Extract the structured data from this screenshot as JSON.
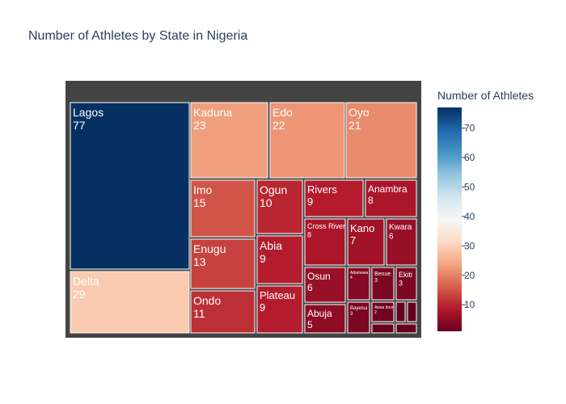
{
  "chart_data": {
    "type": "treemap",
    "title": "Number of Athletes by State in Nigeria",
    "colorscale": "RdBu",
    "colorbar": {
      "title": "Number of Athletes",
      "range": [
        1,
        77
      ],
      "ticks": [
        10,
        20,
        30,
        40,
        50,
        60,
        70
      ]
    },
    "nodes": [
      {
        "label": "Lagos",
        "value": 77
      },
      {
        "label": "Delta",
        "value": 29
      },
      {
        "label": "Kaduna",
        "value": 23
      },
      {
        "label": "Edo",
        "value": 22
      },
      {
        "label": "Oyo",
        "value": 21
      },
      {
        "label": "Imo",
        "value": 15
      },
      {
        "label": "Enugu",
        "value": 13
      },
      {
        "label": "Ondo",
        "value": 11
      },
      {
        "label": "Ogun",
        "value": 10
      },
      {
        "label": "Abia",
        "value": 9
      },
      {
        "label": "Plateau",
        "value": 9
      },
      {
        "label": "Rivers",
        "value": 9
      },
      {
        "label": "Anambra",
        "value": 8
      },
      {
        "label": "Cross River",
        "value": 8
      },
      {
        "label": "Kano",
        "value": 7
      },
      {
        "label": "Kwara",
        "value": 6
      },
      {
        "label": "Osun",
        "value": 6
      },
      {
        "label": "Abuja",
        "value": 5
      },
      {
        "label": "Adamawa",
        "value": 4
      },
      {
        "label": "Benue",
        "value": 3
      },
      {
        "label": "Ekiti",
        "value": 3
      },
      {
        "label": "Bayelsa",
        "value": 3
      },
      {
        "label": "Akwa Ibom",
        "value": 2
      },
      {
        "label": "",
        "value": 1
      },
      {
        "label": "",
        "value": 1
      },
      {
        "label": "",
        "value": 1
      },
      {
        "label": "",
        "value": 1
      }
    ]
  }
}
